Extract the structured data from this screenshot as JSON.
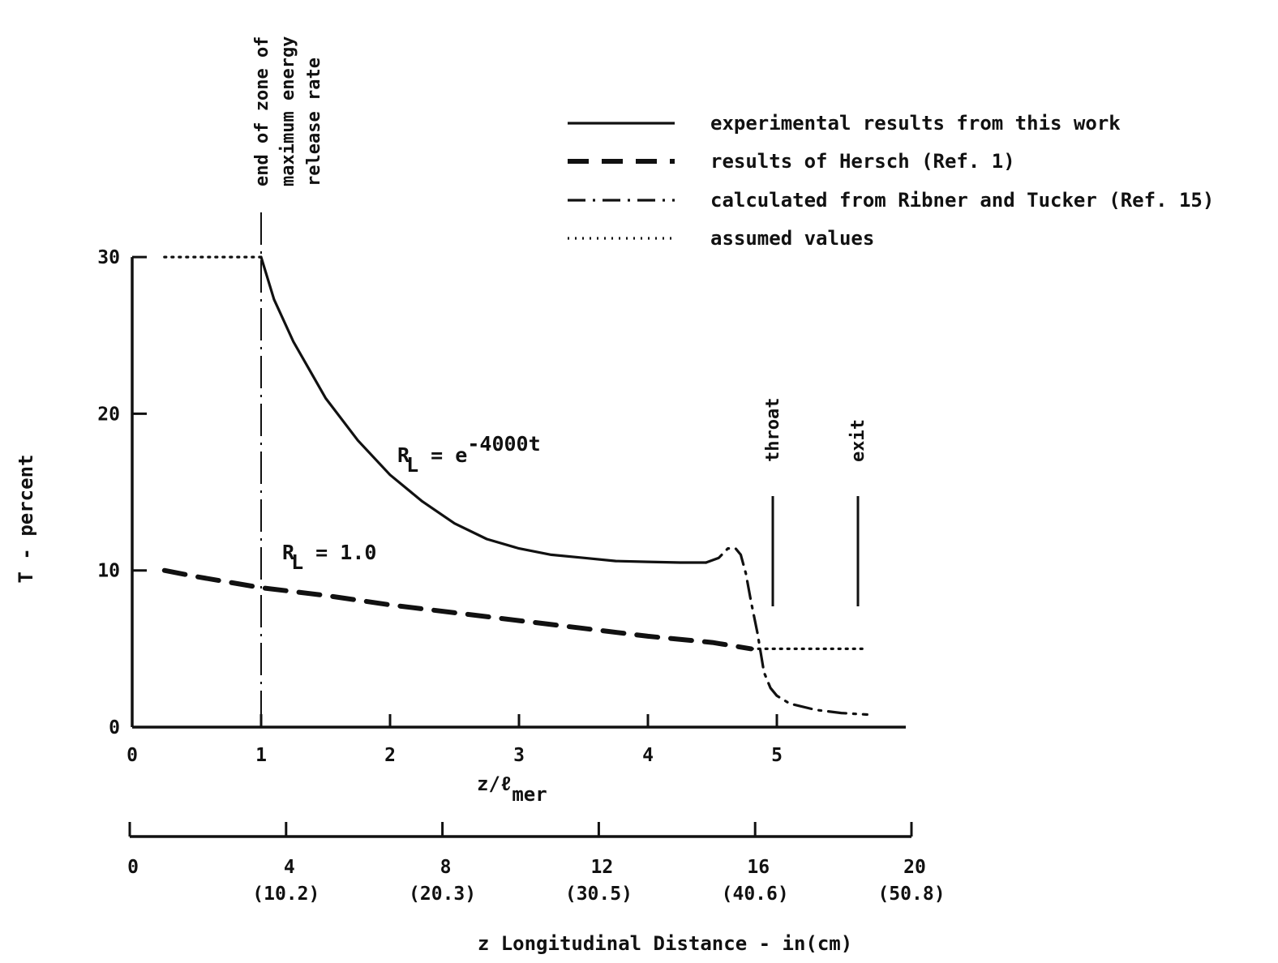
{
  "chart_data": {
    "type": "line",
    "title": "",
    "xlabel": "z/ℓ",
    "xlabel_subscript": "mer",
    "ylabel": "T - percent",
    "xlim": [
      0,
      6
    ],
    "ylim": [
      0,
      30
    ],
    "x_ticks": [
      "0",
      "1",
      "2",
      "3",
      "4",
      "5"
    ],
    "y_ticks": [
      "0",
      "10",
      "20",
      "30"
    ],
    "secondary_axis": {
      "label": "z  Longitudinal Distance - in(cm)",
      "range": [
        0,
        20
      ],
      "ticks": [
        {
          "value": 0,
          "label": "0",
          "sublabel": ""
        },
        {
          "value": 4,
          "label": "4",
          "sublabel": "(10.2)"
        },
        {
          "value": 8,
          "label": "8",
          "sublabel": "(20.3)"
        },
        {
          "value": 12,
          "label": "12",
          "sublabel": "(30.5)"
        },
        {
          "value": 16,
          "label": "16",
          "sublabel": "(40.6)"
        },
        {
          "value": 20,
          "label": "20",
          "sublabel": "(50.8)"
        }
      ]
    },
    "legend": {
      "position": "top-right",
      "entries": [
        {
          "style": "solid",
          "label": "experimental results from this work"
        },
        {
          "style": "dashed",
          "label": "results of Hersch (Ref. 1)"
        },
        {
          "style": "dashdot",
          "label": "calculated from Ribner and Tucker (Ref. 15)"
        },
        {
          "style": "dotted",
          "label": "assumed values"
        }
      ]
    },
    "series": [
      {
        "style": "dotted",
        "x": [
          0.25,
          1.0
        ],
        "y": [
          30,
          30
        ]
      },
      {
        "style": "solid",
        "x": [
          1.0,
          1.1,
          1.25,
          1.5,
          1.75,
          2.0,
          2.25,
          2.5,
          2.75,
          3.0,
          3.25,
          3.5,
          3.75,
          4.0,
          4.25,
          4.45
        ],
        "y": [
          30,
          27.3,
          24.6,
          21.0,
          18.3,
          16.1,
          14.4,
          13.0,
          12.0,
          11.4,
          11.0,
          10.8,
          10.6,
          10.55,
          10.5,
          10.5
        ]
      },
      {
        "style": "dashdot",
        "x": [
          4.45,
          4.55,
          4.62,
          4.68,
          4.72,
          4.76,
          4.8,
          4.85,
          4.9,
          4.95,
          5.0,
          5.1,
          5.3,
          5.5,
          5.7
        ],
        "y": [
          10.5,
          10.8,
          11.4,
          11.4,
          11.0,
          9.8,
          8.0,
          6.0,
          3.5,
          2.5,
          2.0,
          1.5,
          1.1,
          0.9,
          0.8
        ]
      },
      {
        "style": "dashed",
        "x": [
          0.25,
          0.5,
          1.0,
          1.5,
          2.0,
          2.5,
          3.0,
          3.5,
          4.0,
          4.5,
          4.8
        ],
        "y": [
          10.0,
          9.6,
          8.9,
          8.4,
          7.8,
          7.3,
          6.8,
          6.3,
          5.8,
          5.4,
          5.0
        ]
      },
      {
        "style": "dotted",
        "x": [
          4.8,
          5.7
        ],
        "y": [
          5.0,
          5.0
        ]
      }
    ],
    "annotations": [
      {
        "id": "zone-end",
        "lines": [
          "end of zone of",
          "maximum energy",
          "release rate"
        ],
        "x": 1.0
      },
      {
        "id": "throat",
        "text": "throat",
        "x": 4.9
      },
      {
        "id": "exit",
        "text": "exit",
        "x": 5.6
      },
      {
        "id": "eq1",
        "text": "R",
        "sub": "L",
        "rest": " = e",
        "sup": "-4000t"
      },
      {
        "id": "eq2",
        "text": "R",
        "sub": "L",
        "rest": " = 1.0"
      }
    ]
  }
}
